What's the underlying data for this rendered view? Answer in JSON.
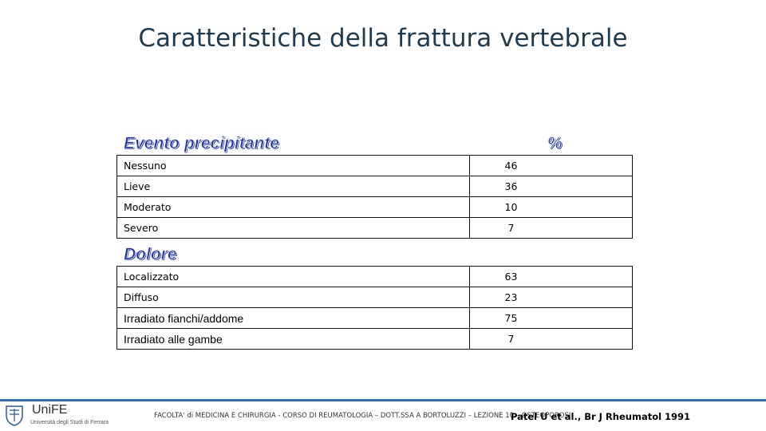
{
  "title": "Caratteristiche della frattura vertebrale",
  "sections": {
    "evento": {
      "header": "Evento precipitante",
      "value_header": "%"
    },
    "dolore": {
      "header": "Dolore"
    }
  },
  "rows_evento": [
    {
      "label": "Nessuno",
      "value": "46"
    },
    {
      "label": "Lieve",
      "value": "36"
    },
    {
      "label": "Moderato",
      "value": "10"
    },
    {
      "label": "Severo",
      "value": "7"
    }
  ],
  "rows_dolore": [
    {
      "label": "Localizzato",
      "value": "63"
    },
    {
      "label": "Diffuso",
      "value": "23"
    },
    {
      "label": "Irradiato fianchi/addome",
      "value": "75"
    },
    {
      "label": "Irradiato alle gambe",
      "value": "7"
    }
  ],
  "footer": {
    "logo_text": "UniFE",
    "logo_sub": "Università degli Studi di Ferrara",
    "course": "FACOLTA' di MEDICINA E CHIRURGIA - CORSO DI REUMATOLOGIA – DOTT.SSA A BORTOLUZZI – LEZIONE 10 – OSTEOPOROSI",
    "citation": "Patel U et al., Br J Rheumatol 1991"
  },
  "colors": {
    "title": "#1f3a4f",
    "section_head": "#1e2f9e",
    "footer_line": "#2f6fb5"
  }
}
